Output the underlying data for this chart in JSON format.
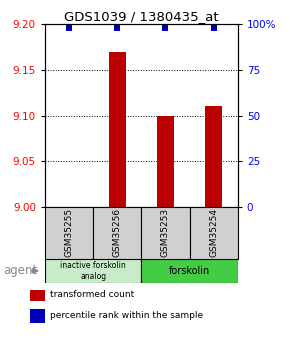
{
  "title": "GDS1039 / 1380435_at",
  "samples": [
    "GSM35255",
    "GSM35256",
    "GSM35253",
    "GSM35254"
  ],
  "bar_values": [
    9.0,
    9.17,
    9.1,
    9.11
  ],
  "percentile_values": [
    98,
    98,
    98,
    98
  ],
  "ylim_left": [
    9.0,
    9.2
  ],
  "ylim_right": [
    0,
    100
  ],
  "yticks_left": [
    9.0,
    9.05,
    9.1,
    9.15,
    9.2
  ],
  "yticks_right": [
    0,
    25,
    50,
    75,
    100
  ],
  "bar_color": "#bb0000",
  "percentile_color": "#0000bb",
  "groups": [
    {
      "label": "inactive forskolin\nanalog",
      "color": "#c8ecc8"
    },
    {
      "label": "forskolin",
      "color": "#44cc44"
    }
  ],
  "agent_label": "agent",
  "legend_items": [
    {
      "color": "#bb0000",
      "label": "transformed count"
    },
    {
      "color": "#0000bb",
      "label": "percentile rank within the sample"
    }
  ],
  "sample_box_color": "#d0d0d0",
  "background_color": "#ffffff"
}
